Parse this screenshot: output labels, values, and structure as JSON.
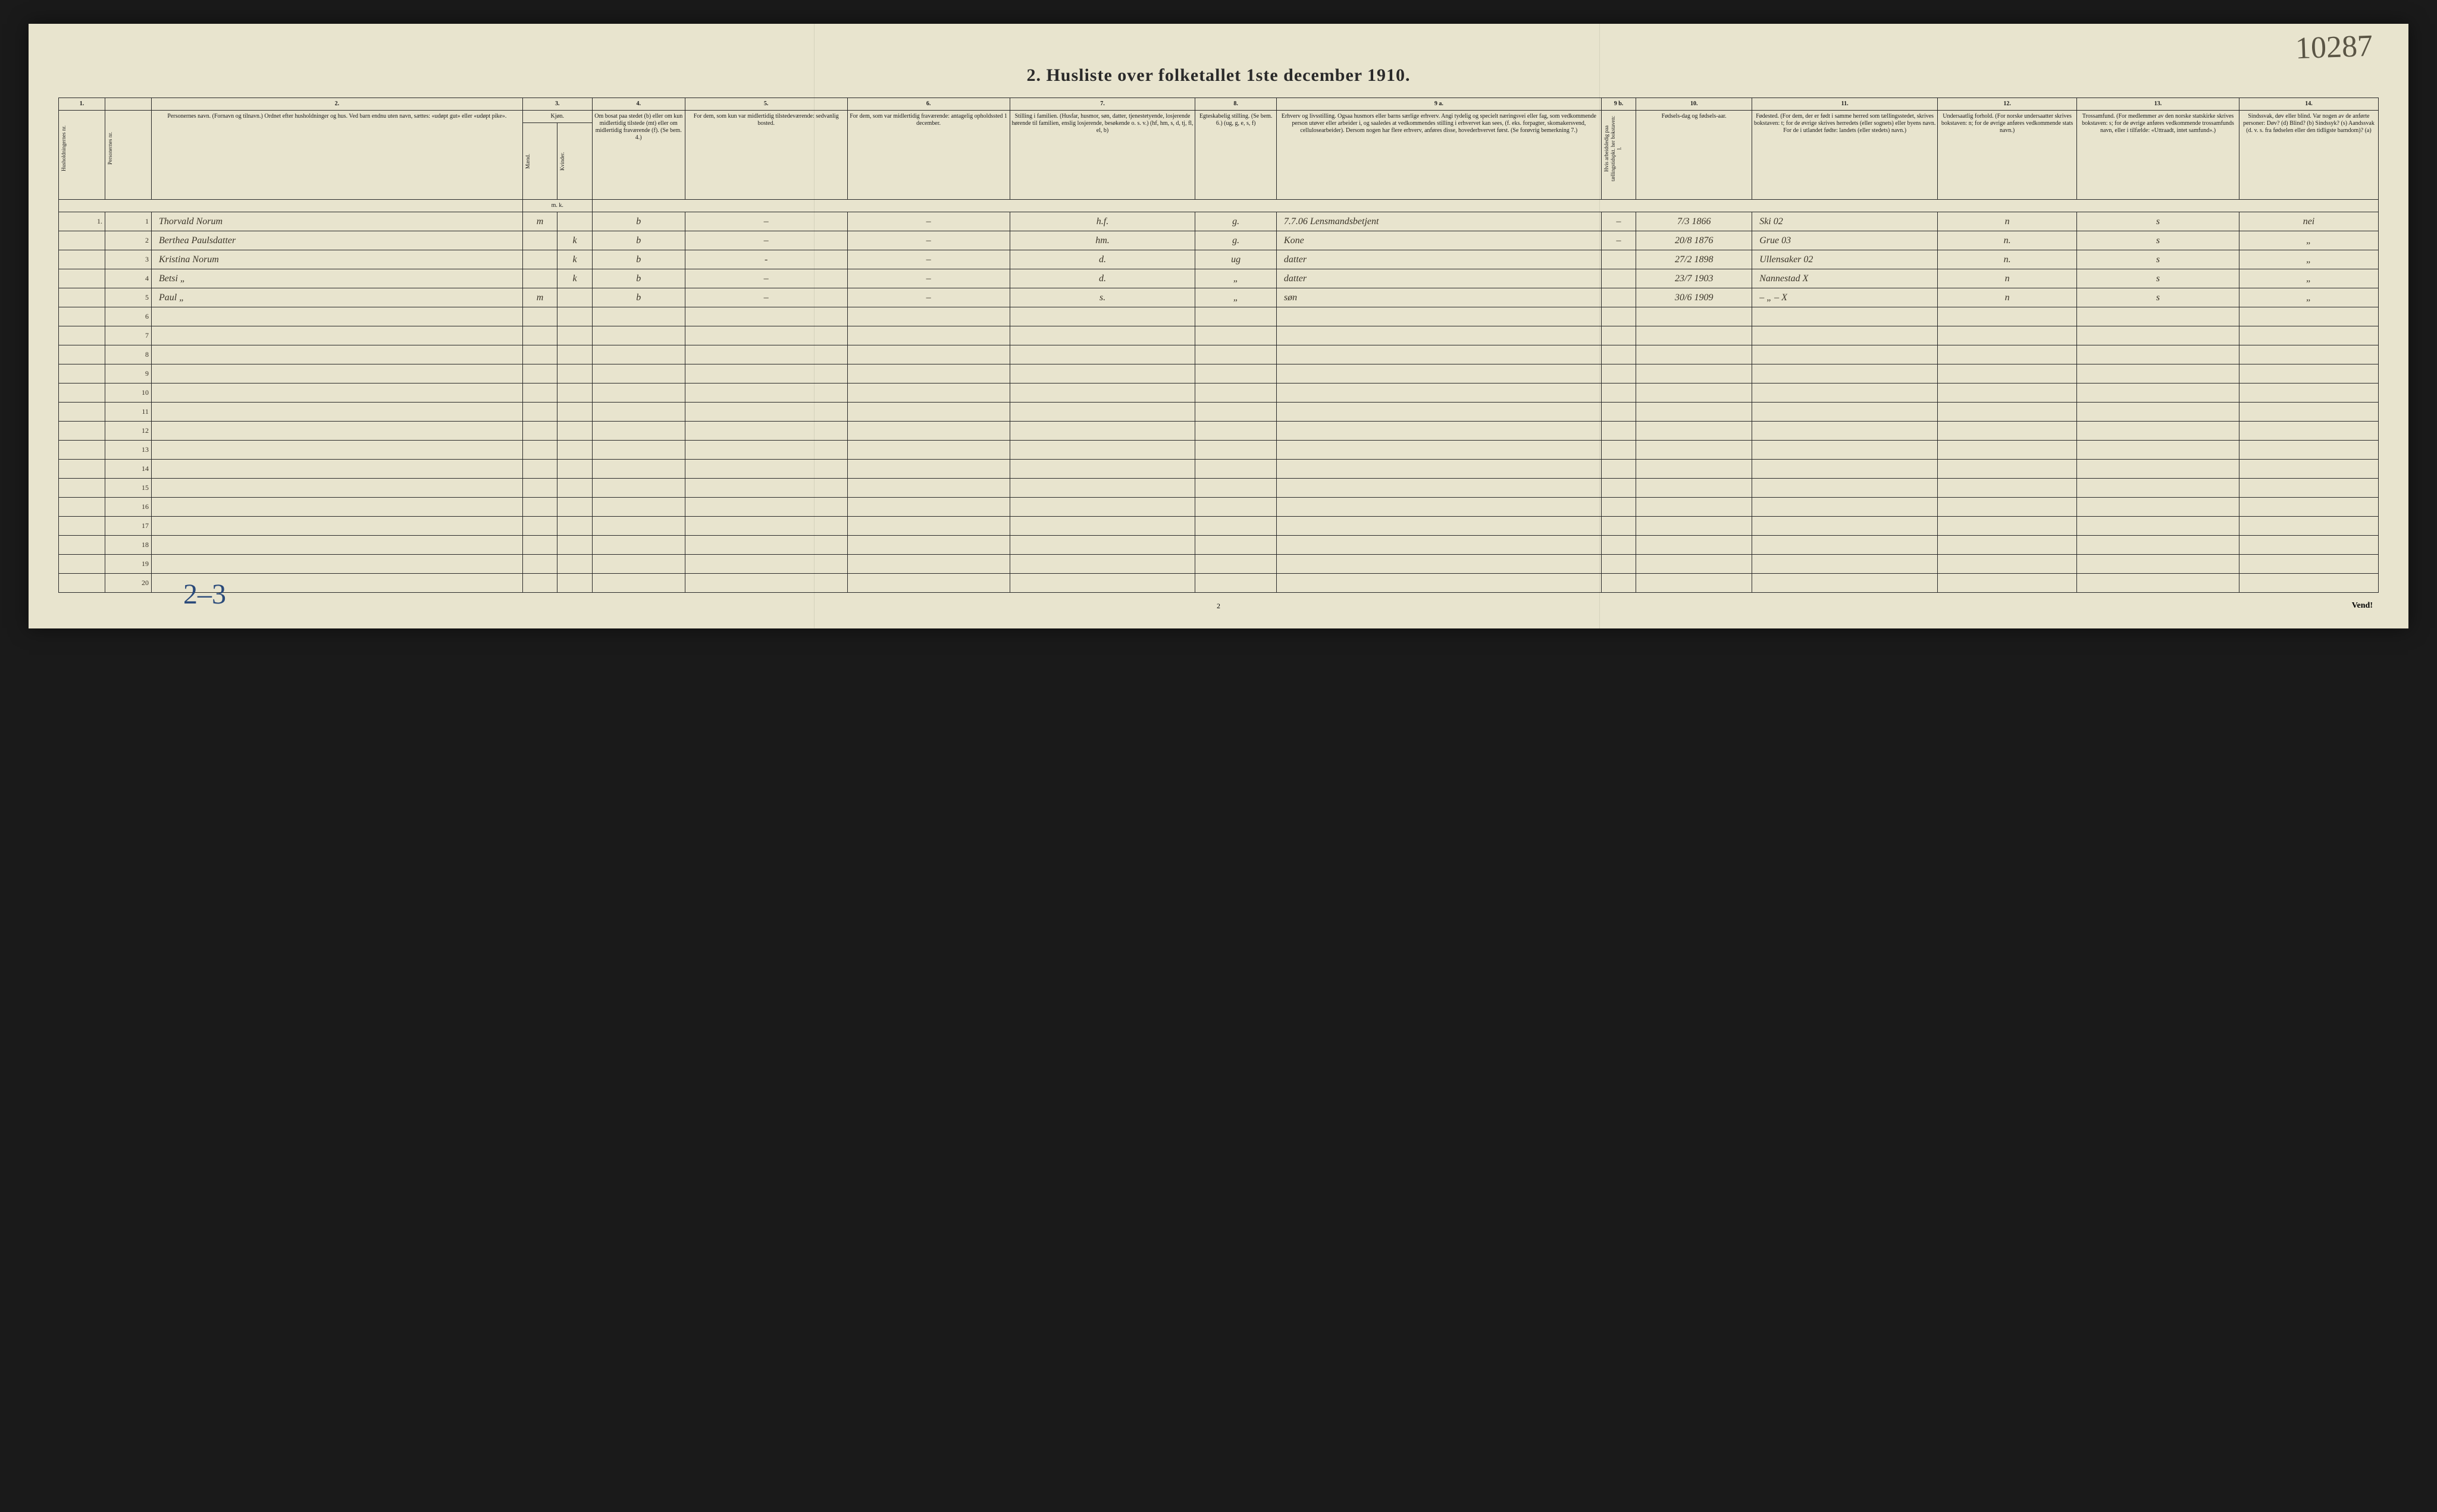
{
  "corner_annotation": "10287",
  "title": "2.  Husliste over folketallet 1ste december 1910.",
  "footer_annotation": "2–3",
  "page_number": "2",
  "vend": "Vend!",
  "colors": {
    "paper": "#e8e4ce",
    "ink_print": "#2a2a2a",
    "ink_hand": "#3a3428",
    "ink_blue": "#2a4a7a"
  },
  "columns": {
    "group_nums": [
      "1.",
      "",
      "2.",
      "3.",
      "",
      "4.",
      "5.",
      "6.",
      "7.",
      "8.",
      "9 a.",
      "9 b.",
      "10.",
      "11.",
      "12.",
      "13.",
      "14."
    ],
    "h_hush": "Husholdningernes nr.",
    "h_pers": "Personernes nr.",
    "h_name": "Personernes navn.\n(Fornavn og tilnavn.)\nOrdnet efter husholdninger og hus.\nVed barn endnu uten navn, sættes: «udøpt gut» eller «udøpt pike».",
    "h_kjon": "Kjøn.",
    "h_m": "Mænd.",
    "h_k": "Kvinder.",
    "h_mk": "m.  k.",
    "h_bosat": "Om bosat paa stedet (b) eller om kun midlertidig tilstede (mt) eller om midlertidig fraværende (f). (Se bem. 4.)",
    "h_c5": "For dem, som kun var midlertidig tilstedeværende:\nsedvanlig bosted.",
    "h_c6": "For dem, som var midlertidig fraværende:\nantagelig opholdssted 1 december.",
    "h_c7": "Stilling i familien.\n(Husfar, husmor, søn, datter, tjenestetyende, losjerende hørende til familien, enslig losjerende, besøkende o. s. v.)\n(hf, hm, s, d, tj, fl, el, b)",
    "h_c8": "Egteskabelig stilling.\n(Se bem. 6.)\n(ug, g, e, s, f)",
    "h_c9a": "Erhverv og livsstilling.\nOgsaa husmors eller barns særlige erhverv. Angi tydelig og specielt næringsvei eller fag, som vedkommende person utøver eller arbeider i, og saaledes at vedkommendes stilling i erhvervet kan sees, (f. eks. forpagter, skomakersvend, cellulosearbeider). Dersom nogen har flere erhverv, anføres disse, hovederhvervet først.\n(Se forøvrig bemerkning 7.)",
    "h_c9b": "Hvis arbeidsledig paa tællingstidspkt. her bokstaven: l.",
    "h_c10": "Fødsels-dag og fødsels-aar.",
    "h_c11": "Fødested.\n(For dem, der er født i samme herred som tællingsstedet, skrives bokstaven: t; for de øvrige skrives herredets (eller sognets) eller byens navn. For de i utlandet fødte: landets (eller stedets) navn.)",
    "h_c12": "Undersaatlig forhold.\n(For norske undersaatter skrives bokstaven: n; for de øvrige anføres vedkommende stats navn.)",
    "h_c13": "Trossamfund.\n(For medlemmer av den norske statskirke skrives bokstaven: s; for de øvrige anføres vedkommende trossamfunds navn, eller i tilfælde: «Uttraadt, intet samfund».)",
    "h_c14": "Sindssvak, døv eller blind.\nVar nogen av de anførte personer:\nDøv? (d)\nBlind? (b)\nSindssyk? (s)\nAandssvak (d. v. s. fra fødselen eller den tidligste barndom)? (a)"
  },
  "rows": [
    {
      "hush": "1.",
      "pers": "1",
      "name": "Thorvald Norum",
      "m": "m",
      "k": "",
      "bosat": "b",
      "c5": "–",
      "c6": "–",
      "c7": "h.f.",
      "c8": "g.",
      "c9a": "7.7.06  Lensmandsbetjent",
      "c9b": "–",
      "c10": "7/3 1866",
      "c11": "Ski  02",
      "c12": "n",
      "c13": "s",
      "c14": "nei"
    },
    {
      "hush": "",
      "pers": "2",
      "name": "Berthea Paulsdatter",
      "m": "",
      "k": "k",
      "bosat": "b",
      "c5": "–",
      "c6": "–",
      "c7": "hm.",
      "c8": "g.",
      "c9a": "Kone",
      "c9b": "–",
      "c10": "20/8 1876",
      "c11": "Grue  03",
      "c12": "n.",
      "c13": "s",
      "c14": "„"
    },
    {
      "hush": "",
      "pers": "3",
      "name": "Kristina Norum",
      "m": "",
      "k": "k",
      "bosat": "b",
      "c5": "-",
      "c6": "–",
      "c7": "d.",
      "c8": "ug",
      "c9a": "datter",
      "c9b": "",
      "c10": "27/2 1898",
      "c11": "Ullensaker 02",
      "c12": "n.",
      "c13": "s",
      "c14": "„"
    },
    {
      "hush": "",
      "pers": "4",
      "name": "Betsi      „",
      "m": "",
      "k": "k",
      "bosat": "b",
      "c5": "–",
      "c6": "–",
      "c7": "d.",
      "c8": "„",
      "c9a": "datter",
      "c9b": "",
      "c10": "23/7 1903",
      "c11": "Nannestad  X",
      "c12": "n",
      "c13": "s",
      "c14": "„"
    },
    {
      "hush": "",
      "pers": "5",
      "name": "Paul       „",
      "m": "m",
      "k": "",
      "bosat": "b",
      "c5": "–",
      "c6": "–",
      "c7": "s.",
      "c8": "„",
      "c9a": "søn",
      "c9b": "",
      "c10": "30/6 1909",
      "c11": "– „ –  X",
      "c12": "n",
      "c13": "s",
      "c14": "„"
    },
    {
      "hush": "",
      "pers": "6",
      "name": "",
      "m": "",
      "k": "",
      "bosat": "",
      "c5": "",
      "c6": "",
      "c7": "",
      "c8": "",
      "c9a": "",
      "c9b": "",
      "c10": "",
      "c11": "",
      "c12": "",
      "c13": "",
      "c14": ""
    },
    {
      "hush": "",
      "pers": "7",
      "name": "",
      "m": "",
      "k": "",
      "bosat": "",
      "c5": "",
      "c6": "",
      "c7": "",
      "c8": "",
      "c9a": "",
      "c9b": "",
      "c10": "",
      "c11": "",
      "c12": "",
      "c13": "",
      "c14": ""
    },
    {
      "hush": "",
      "pers": "8",
      "name": "",
      "m": "",
      "k": "",
      "bosat": "",
      "c5": "",
      "c6": "",
      "c7": "",
      "c8": "",
      "c9a": "",
      "c9b": "",
      "c10": "",
      "c11": "",
      "c12": "",
      "c13": "",
      "c14": ""
    },
    {
      "hush": "",
      "pers": "9",
      "name": "",
      "m": "",
      "k": "",
      "bosat": "",
      "c5": "",
      "c6": "",
      "c7": "",
      "c8": "",
      "c9a": "",
      "c9b": "",
      "c10": "",
      "c11": "",
      "c12": "",
      "c13": "",
      "c14": ""
    },
    {
      "hush": "",
      "pers": "10",
      "name": "",
      "m": "",
      "k": "",
      "bosat": "",
      "c5": "",
      "c6": "",
      "c7": "",
      "c8": "",
      "c9a": "",
      "c9b": "",
      "c10": "",
      "c11": "",
      "c12": "",
      "c13": "",
      "c14": ""
    },
    {
      "hush": "",
      "pers": "11",
      "name": "",
      "m": "",
      "k": "",
      "bosat": "",
      "c5": "",
      "c6": "",
      "c7": "",
      "c8": "",
      "c9a": "",
      "c9b": "",
      "c10": "",
      "c11": "",
      "c12": "",
      "c13": "",
      "c14": ""
    },
    {
      "hush": "",
      "pers": "12",
      "name": "",
      "m": "",
      "k": "",
      "bosat": "",
      "c5": "",
      "c6": "",
      "c7": "",
      "c8": "",
      "c9a": "",
      "c9b": "",
      "c10": "",
      "c11": "",
      "c12": "",
      "c13": "",
      "c14": ""
    },
    {
      "hush": "",
      "pers": "13",
      "name": "",
      "m": "",
      "k": "",
      "bosat": "",
      "c5": "",
      "c6": "",
      "c7": "",
      "c8": "",
      "c9a": "",
      "c9b": "",
      "c10": "",
      "c11": "",
      "c12": "",
      "c13": "",
      "c14": ""
    },
    {
      "hush": "",
      "pers": "14",
      "name": "",
      "m": "",
      "k": "",
      "bosat": "",
      "c5": "",
      "c6": "",
      "c7": "",
      "c8": "",
      "c9a": "",
      "c9b": "",
      "c10": "",
      "c11": "",
      "c12": "",
      "c13": "",
      "c14": ""
    },
    {
      "hush": "",
      "pers": "15",
      "name": "",
      "m": "",
      "k": "",
      "bosat": "",
      "c5": "",
      "c6": "",
      "c7": "",
      "c8": "",
      "c9a": "",
      "c9b": "",
      "c10": "",
      "c11": "",
      "c12": "",
      "c13": "",
      "c14": ""
    },
    {
      "hush": "",
      "pers": "16",
      "name": "",
      "m": "",
      "k": "",
      "bosat": "",
      "c5": "",
      "c6": "",
      "c7": "",
      "c8": "",
      "c9a": "",
      "c9b": "",
      "c10": "",
      "c11": "",
      "c12": "",
      "c13": "",
      "c14": ""
    },
    {
      "hush": "",
      "pers": "17",
      "name": "",
      "m": "",
      "k": "",
      "bosat": "",
      "c5": "",
      "c6": "",
      "c7": "",
      "c8": "",
      "c9a": "",
      "c9b": "",
      "c10": "",
      "c11": "",
      "c12": "",
      "c13": "",
      "c14": ""
    },
    {
      "hush": "",
      "pers": "18",
      "name": "",
      "m": "",
      "k": "",
      "bosat": "",
      "c5": "",
      "c6": "",
      "c7": "",
      "c8": "",
      "c9a": "",
      "c9b": "",
      "c10": "",
      "c11": "",
      "c12": "",
      "c13": "",
      "c14": ""
    },
    {
      "hush": "",
      "pers": "19",
      "name": "",
      "m": "",
      "k": "",
      "bosat": "",
      "c5": "",
      "c6": "",
      "c7": "",
      "c8": "",
      "c9a": "",
      "c9b": "",
      "c10": "",
      "c11": "",
      "c12": "",
      "c13": "",
      "c14": ""
    },
    {
      "hush": "",
      "pers": "20",
      "name": "",
      "m": "",
      "k": "",
      "bosat": "",
      "c5": "",
      "c6": "",
      "c7": "",
      "c8": "",
      "c9a": "",
      "c9b": "",
      "c10": "",
      "c11": "",
      "c12": "",
      "c13": "",
      "c14": ""
    }
  ],
  "col_widths_pct": [
    2,
    2,
    16,
    1.5,
    1.5,
    4,
    7,
    7,
    8,
    3.5,
    14,
    1.5,
    5,
    8,
    6,
    7,
    6
  ]
}
